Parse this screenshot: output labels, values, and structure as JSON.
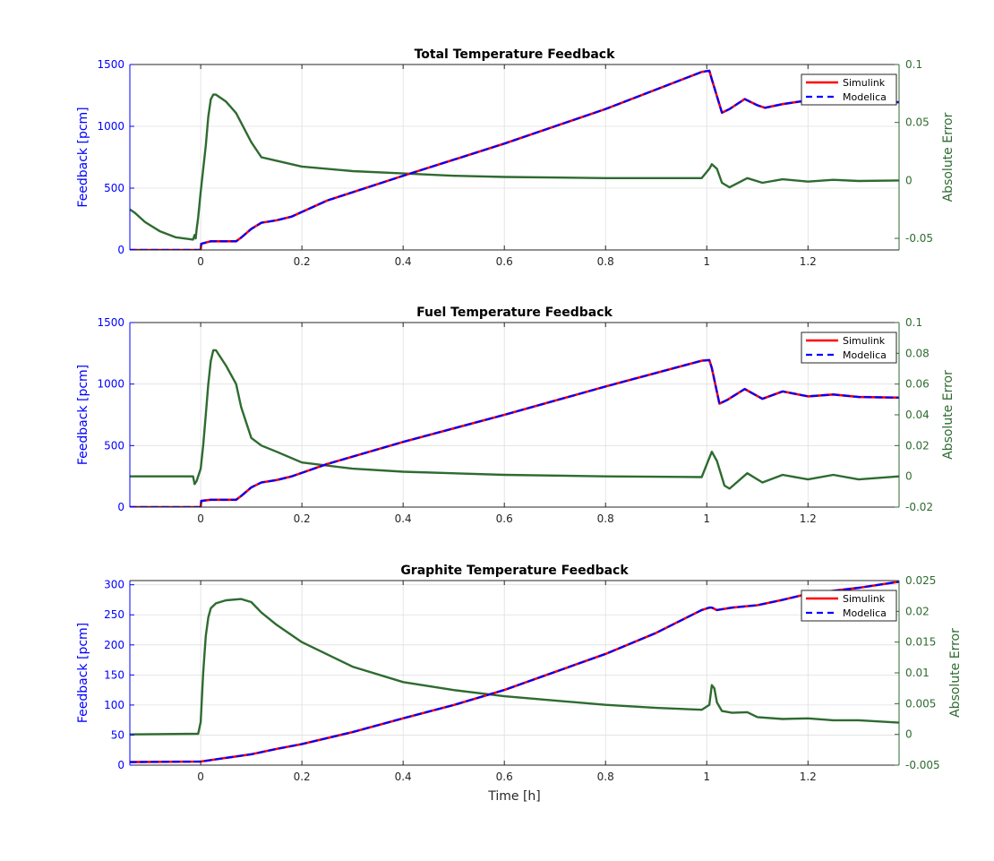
{
  "colors": {
    "simulink": "#ff0000",
    "modelica": "#0000ff",
    "error": "#2e6b30",
    "left_axis": "#0000ff",
    "right_axis": "#2e6b30",
    "grid": "#dfdfdf"
  },
  "chart_data": [
    {
      "type": "line",
      "title": "Total Temperature Feedback",
      "xlabel": "",
      "ylabel": "Feedback [pcm]",
      "ylabel_right": "Absolute Error",
      "xlim": [
        -0.14,
        1.38
      ],
      "ylim": [
        0,
        1500
      ],
      "ylim_right": [
        -0.06,
        0.1
      ],
      "xticks": [
        "0",
        "0.2",
        "0.4",
        "0.6",
        "0.8",
        "1",
        "1.2"
      ],
      "xtick_values": [
        0,
        0.2,
        0.4,
        0.6,
        0.8,
        1,
        1.2
      ],
      "yticks": [
        "0",
        "500",
        "1000",
        "1500"
      ],
      "ytick_values": [
        0,
        500,
        1000,
        1500
      ],
      "yticks_right": [
        "-0.05",
        "0",
        "0.05",
        "0.1"
      ],
      "ytick_values_right": [
        -0.05,
        0,
        0.05,
        0.1
      ],
      "grid": true,
      "legend": {
        "position": "top-right",
        "entries": [
          "Simulink",
          "Modelica"
        ]
      },
      "series": [
        {
          "name": "Simulink",
          "axis": "left",
          "style": "solid",
          "x": [
            -0.14,
            0,
            0.001,
            0.02,
            0.07,
            0.08,
            0.1,
            0.12,
            0.15,
            0.18,
            0.25,
            0.4,
            0.6,
            0.8,
            0.99,
            1.005,
            1.01,
            1.03,
            1.045,
            1.075,
            1.1,
            1.115,
            1.15,
            1.2,
            1.25,
            1.3,
            1.38
          ],
          "y": [
            0,
            0,
            50,
            70,
            70,
            100,
            170,
            220,
            240,
            270,
            400,
            600,
            860,
            1140,
            1440,
            1450,
            1380,
            1110,
            1140,
            1220,
            1170,
            1150,
            1180,
            1210,
            1200,
            1205,
            1195
          ]
        },
        {
          "name": "Modelica",
          "axis": "left",
          "style": "dashed",
          "x": [
            -0.14,
            0,
            0.001,
            0.02,
            0.07,
            0.08,
            0.1,
            0.12,
            0.15,
            0.18,
            0.25,
            0.4,
            0.6,
            0.8,
            0.99,
            1.005,
            1.01,
            1.03,
            1.045,
            1.075,
            1.1,
            1.115,
            1.15,
            1.2,
            1.25,
            1.3,
            1.38
          ],
          "y": [
            0,
            0,
            50,
            70,
            70,
            100,
            170,
            220,
            240,
            270,
            400,
            600,
            860,
            1140,
            1440,
            1450,
            1380,
            1110,
            1140,
            1220,
            1170,
            1150,
            1180,
            1210,
            1200,
            1205,
            1195
          ]
        },
        {
          "name": "",
          "axis": "right",
          "style": "solid",
          "x": [
            -0.14,
            -0.13,
            -0.11,
            -0.08,
            -0.05,
            -0.015,
            -0.012,
            -0.01,
            -0.008,
            -0.005,
            0,
            0.01,
            0.015,
            0.02,
            0.025,
            0.03,
            0.05,
            0.07,
            0.1,
            0.12,
            0.15,
            0.2,
            0.3,
            0.4,
            0.5,
            0.6,
            0.8,
            0.99,
            1.005,
            1.01,
            1.02,
            1.03,
            1.045,
            1.08,
            1.11,
            1.15,
            1.2,
            1.25,
            1.3,
            1.38
          ],
          "y": [
            -0.025,
            -0.028,
            -0.036,
            -0.044,
            -0.049,
            -0.051,
            -0.047,
            -0.05,
            -0.042,
            -0.032,
            -0.01,
            0.03,
            0.055,
            0.07,
            0.074,
            0.074,
            0.068,
            0.058,
            0.033,
            0.02,
            0.017,
            0.012,
            0.008,
            0.006,
            0.004,
            0.003,
            0.002,
            0.002,
            0.01,
            0.014,
            0.01,
            -0.002,
            -0.006,
            0.002,
            -0.002,
            0.001,
            -0.001,
            0.0005,
            -0.0005,
            0.0
          ]
        }
      ]
    },
    {
      "type": "line",
      "title": "Fuel Temperature Feedback",
      "xlabel": "",
      "ylabel": "Feedback [pcm]",
      "ylabel_right": "Absolute Error",
      "xlim": [
        -0.14,
        1.38
      ],
      "ylim": [
        0,
        1500
      ],
      "ylim_right": [
        -0.02,
        0.1
      ],
      "xticks": [
        "0",
        "0.2",
        "0.4",
        "0.6",
        "0.8",
        "1",
        "1.2"
      ],
      "xtick_values": [
        0,
        0.2,
        0.4,
        0.6,
        0.8,
        1,
        1.2
      ],
      "yticks": [
        "0",
        "500",
        "1000",
        "1500"
      ],
      "ytick_values": [
        0,
        500,
        1000,
        1500
      ],
      "yticks_right": [
        "-0.02",
        "0",
        "0.02",
        "0.04",
        "0.06",
        "0.08",
        "0.1"
      ],
      "ytick_values_right": [
        -0.02,
        0,
        0.02,
        0.04,
        0.06,
        0.08,
        0.1
      ],
      "grid": true,
      "legend": {
        "position": "top-right",
        "entries": [
          "Simulink",
          "Modelica"
        ]
      },
      "series": [
        {
          "name": "Simulink",
          "axis": "left",
          "style": "solid",
          "x": [
            -0.14,
            0,
            0.001,
            0.02,
            0.07,
            0.08,
            0.1,
            0.12,
            0.15,
            0.18,
            0.25,
            0.4,
            0.6,
            0.8,
            0.99,
            1.005,
            1.01,
            1.025,
            1.04,
            1.075,
            1.11,
            1.15,
            1.2,
            1.25,
            1.3,
            1.38
          ],
          "y": [
            0,
            0,
            50,
            60,
            60,
            90,
            160,
            200,
            220,
            250,
            350,
            530,
            750,
            980,
            1190,
            1195,
            1130,
            840,
            870,
            960,
            880,
            940,
            900,
            915,
            895,
            890
          ]
        },
        {
          "name": "Modelica",
          "axis": "left",
          "style": "dashed",
          "x": [
            -0.14,
            0,
            0.001,
            0.02,
            0.07,
            0.08,
            0.1,
            0.12,
            0.15,
            0.18,
            0.25,
            0.4,
            0.6,
            0.8,
            0.99,
            1.005,
            1.01,
            1.025,
            1.04,
            1.075,
            1.11,
            1.15,
            1.2,
            1.25,
            1.3,
            1.38
          ],
          "y": [
            0,
            0,
            50,
            60,
            60,
            90,
            160,
            200,
            220,
            250,
            350,
            530,
            750,
            980,
            1190,
            1195,
            1130,
            840,
            870,
            960,
            880,
            940,
            900,
            915,
            895,
            890
          ]
        },
        {
          "name": "",
          "axis": "right",
          "style": "solid",
          "x": [
            -0.14,
            -0.015,
            -0.012,
            -0.008,
            0,
            0.005,
            0.01,
            0.015,
            0.02,
            0.025,
            0.03,
            0.05,
            0.07,
            0.08,
            0.1,
            0.12,
            0.15,
            0.2,
            0.3,
            0.4,
            0.6,
            0.8,
            0.99,
            1.005,
            1.01,
            1.02,
            1.035,
            1.045,
            1.08,
            1.11,
            1.15,
            1.2,
            1.25,
            1.3,
            1.38
          ],
          "y": [
            0,
            0,
            -0.005,
            -0.003,
            0.005,
            0.02,
            0.04,
            0.06,
            0.075,
            0.082,
            0.082,
            0.072,
            0.06,
            0.045,
            0.025,
            0.02,
            0.016,
            0.009,
            0.005,
            0.003,
            0.001,
            0,
            -0.0005,
            0.012,
            0.016,
            0.01,
            -0.006,
            -0.008,
            0.002,
            -0.004,
            0.001,
            -0.002,
            0.001,
            -0.002,
            0.0
          ]
        }
      ]
    },
    {
      "type": "line",
      "title": "Graphite Temperature Feedback",
      "xlabel": "Time [h]",
      "ylabel": "Feedback [pcm]",
      "ylabel_right": "Absolute Error",
      "xlim": [
        -0.14,
        1.38
      ],
      "ylim": [
        0,
        307
      ],
      "ylim_right": [
        -0.005,
        0.025
      ],
      "xticks": [
        "0",
        "0.2",
        "0.4",
        "0.6",
        "0.8",
        "1",
        "1.2"
      ],
      "xtick_values": [
        0,
        0.2,
        0.4,
        0.6,
        0.8,
        1,
        1.2
      ],
      "yticks": [
        "0",
        "50",
        "100",
        "150",
        "200",
        "250",
        "300"
      ],
      "ytick_values": [
        0,
        50,
        100,
        150,
        200,
        250,
        300
      ],
      "yticks_right": [
        "-0.005",
        "0",
        "0.005",
        "0.01",
        "0.015",
        "0.02",
        "0.025"
      ],
      "ytick_values_right": [
        -0.005,
        0,
        0.005,
        0.01,
        0.015,
        0.02,
        0.025
      ],
      "grid": true,
      "legend": {
        "position": "top-right",
        "entries": [
          "Simulink",
          "Modelica"
        ]
      },
      "series": [
        {
          "name": "Simulink",
          "axis": "left",
          "style": "solid",
          "x": [
            -0.14,
            0,
            0.05,
            0.1,
            0.15,
            0.2,
            0.3,
            0.4,
            0.5,
            0.6,
            0.7,
            0.8,
            0.9,
            0.99,
            1.005,
            1.01,
            1.02,
            1.05,
            1.1,
            1.15,
            1.2,
            1.25,
            1.3,
            1.38
          ],
          "y": [
            5,
            6,
            12,
            18,
            27,
            35,
            55,
            78,
            100,
            125,
            155,
            185,
            220,
            258,
            262,
            262,
            258,
            262,
            266,
            275,
            285,
            290,
            295,
            305
          ]
        },
        {
          "name": "Modelica",
          "axis": "left",
          "style": "dashed",
          "x": [
            -0.14,
            0,
            0.05,
            0.1,
            0.15,
            0.2,
            0.3,
            0.4,
            0.5,
            0.6,
            0.7,
            0.8,
            0.9,
            0.99,
            1.005,
            1.01,
            1.02,
            1.05,
            1.1,
            1.15,
            1.2,
            1.25,
            1.3,
            1.38
          ],
          "y": [
            5,
            6,
            12,
            18,
            27,
            35,
            55,
            78,
            100,
            125,
            155,
            185,
            220,
            258,
            262,
            262,
            258,
            262,
            266,
            275,
            285,
            290,
            295,
            305
          ]
        },
        {
          "name": "",
          "axis": "right",
          "style": "solid",
          "x": [
            -0.14,
            -0.005,
            0,
            0.005,
            0.01,
            0.015,
            0.02,
            0.03,
            0.05,
            0.08,
            0.1,
            0.12,
            0.15,
            0.2,
            0.3,
            0.4,
            0.5,
            0.6,
            0.7,
            0.8,
            0.9,
            0.99,
            1.005,
            1.01,
            1.015,
            1.02,
            1.03,
            1.05,
            1.08,
            1.1,
            1.15,
            1.2,
            1.25,
            1.3,
            1.38
          ],
          "y": [
            0,
            0.0001,
            0.002,
            0.01,
            0.016,
            0.019,
            0.0205,
            0.0213,
            0.0218,
            0.022,
            0.0215,
            0.0198,
            0.0178,
            0.015,
            0.011,
            0.0085,
            0.0072,
            0.0062,
            0.0055,
            0.0048,
            0.0043,
            0.004,
            0.0048,
            0.008,
            0.0075,
            0.0052,
            0.0038,
            0.0035,
            0.0036,
            0.0028,
            0.0025,
            0.0026,
            0.0023,
            0.0023,
            0.0019
          ]
        }
      ]
    }
  ]
}
